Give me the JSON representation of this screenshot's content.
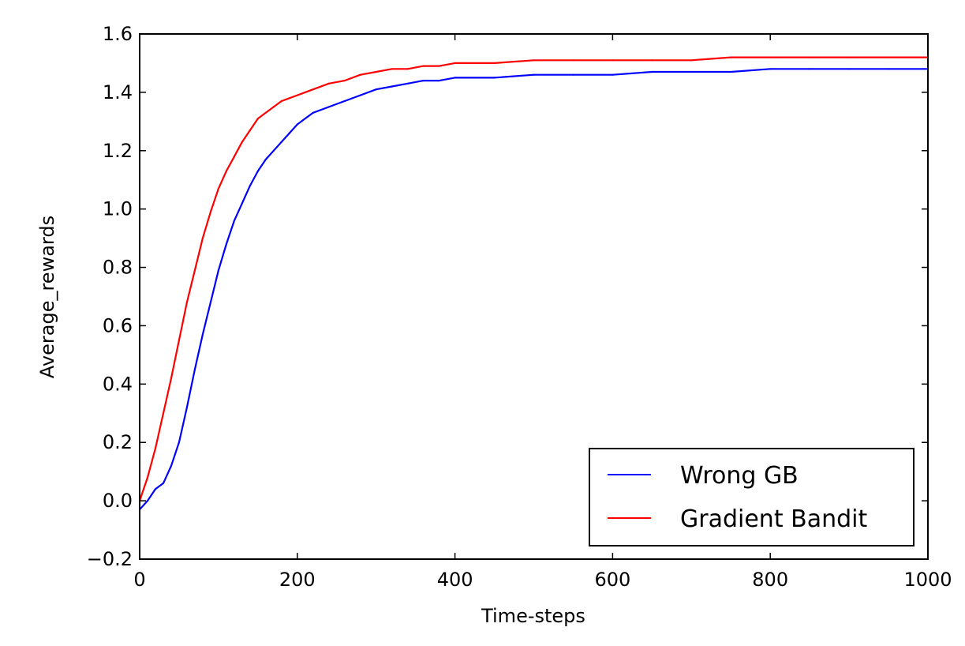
{
  "chart_data": {
    "type": "line",
    "title": "",
    "xlabel": "Time-steps",
    "ylabel": "Average_rewards",
    "xlim": [
      0,
      1000
    ],
    "ylim": [
      -0.2,
      1.6
    ],
    "xticks": [
      0,
      200,
      400,
      600,
      800,
      1000
    ],
    "xtick_labels": [
      "0",
      "200",
      "400",
      "600",
      "800",
      "1000"
    ],
    "yticks": [
      -0.2,
      0.0,
      0.2,
      0.4,
      0.6,
      0.8,
      1.0,
      1.2,
      1.4,
      1.6
    ],
    "ytick_labels": [
      "−0.2",
      "0.0",
      "0.2",
      "0.4",
      "0.6",
      "0.8",
      "1.0",
      "1.2",
      "1.4",
      "1.6"
    ],
    "grid": false,
    "legend_position": "lower-right",
    "series": [
      {
        "name": "Wrong GB",
        "color": "#0000ff",
        "x": [
          0,
          10,
          20,
          30,
          40,
          50,
          60,
          70,
          80,
          90,
          100,
          110,
          120,
          130,
          140,
          150,
          160,
          170,
          180,
          190,
          200,
          220,
          240,
          260,
          280,
          300,
          320,
          340,
          360,
          380,
          400,
          450,
          500,
          550,
          600,
          650,
          700,
          750,
          800,
          850,
          900,
          950,
          1000
        ],
        "y": [
          -0.03,
          0.0,
          0.04,
          0.06,
          0.12,
          0.2,
          0.32,
          0.45,
          0.57,
          0.68,
          0.79,
          0.88,
          0.96,
          1.02,
          1.08,
          1.13,
          1.17,
          1.2,
          1.23,
          1.26,
          1.29,
          1.33,
          1.35,
          1.37,
          1.39,
          1.41,
          1.42,
          1.43,
          1.44,
          1.44,
          1.45,
          1.45,
          1.46,
          1.46,
          1.46,
          1.47,
          1.47,
          1.47,
          1.48,
          1.48,
          1.48,
          1.48,
          1.48
        ]
      },
      {
        "name": "Gradient Bandit",
        "color": "#ff0000",
        "x": [
          0,
          10,
          20,
          30,
          40,
          50,
          60,
          70,
          80,
          90,
          100,
          110,
          120,
          130,
          140,
          150,
          160,
          170,
          180,
          190,
          200,
          220,
          240,
          260,
          280,
          300,
          320,
          340,
          360,
          380,
          400,
          450,
          500,
          550,
          600,
          650,
          700,
          750,
          800,
          850,
          900,
          950,
          1000
        ],
        "y": [
          0.0,
          0.08,
          0.18,
          0.3,
          0.42,
          0.55,
          0.68,
          0.79,
          0.9,
          0.99,
          1.07,
          1.13,
          1.18,
          1.23,
          1.27,
          1.31,
          1.33,
          1.35,
          1.37,
          1.38,
          1.39,
          1.41,
          1.43,
          1.44,
          1.46,
          1.47,
          1.48,
          1.48,
          1.49,
          1.49,
          1.5,
          1.5,
          1.51,
          1.51,
          1.51,
          1.51,
          1.51,
          1.52,
          1.52,
          1.52,
          1.52,
          1.52,
          1.52
        ]
      }
    ]
  }
}
